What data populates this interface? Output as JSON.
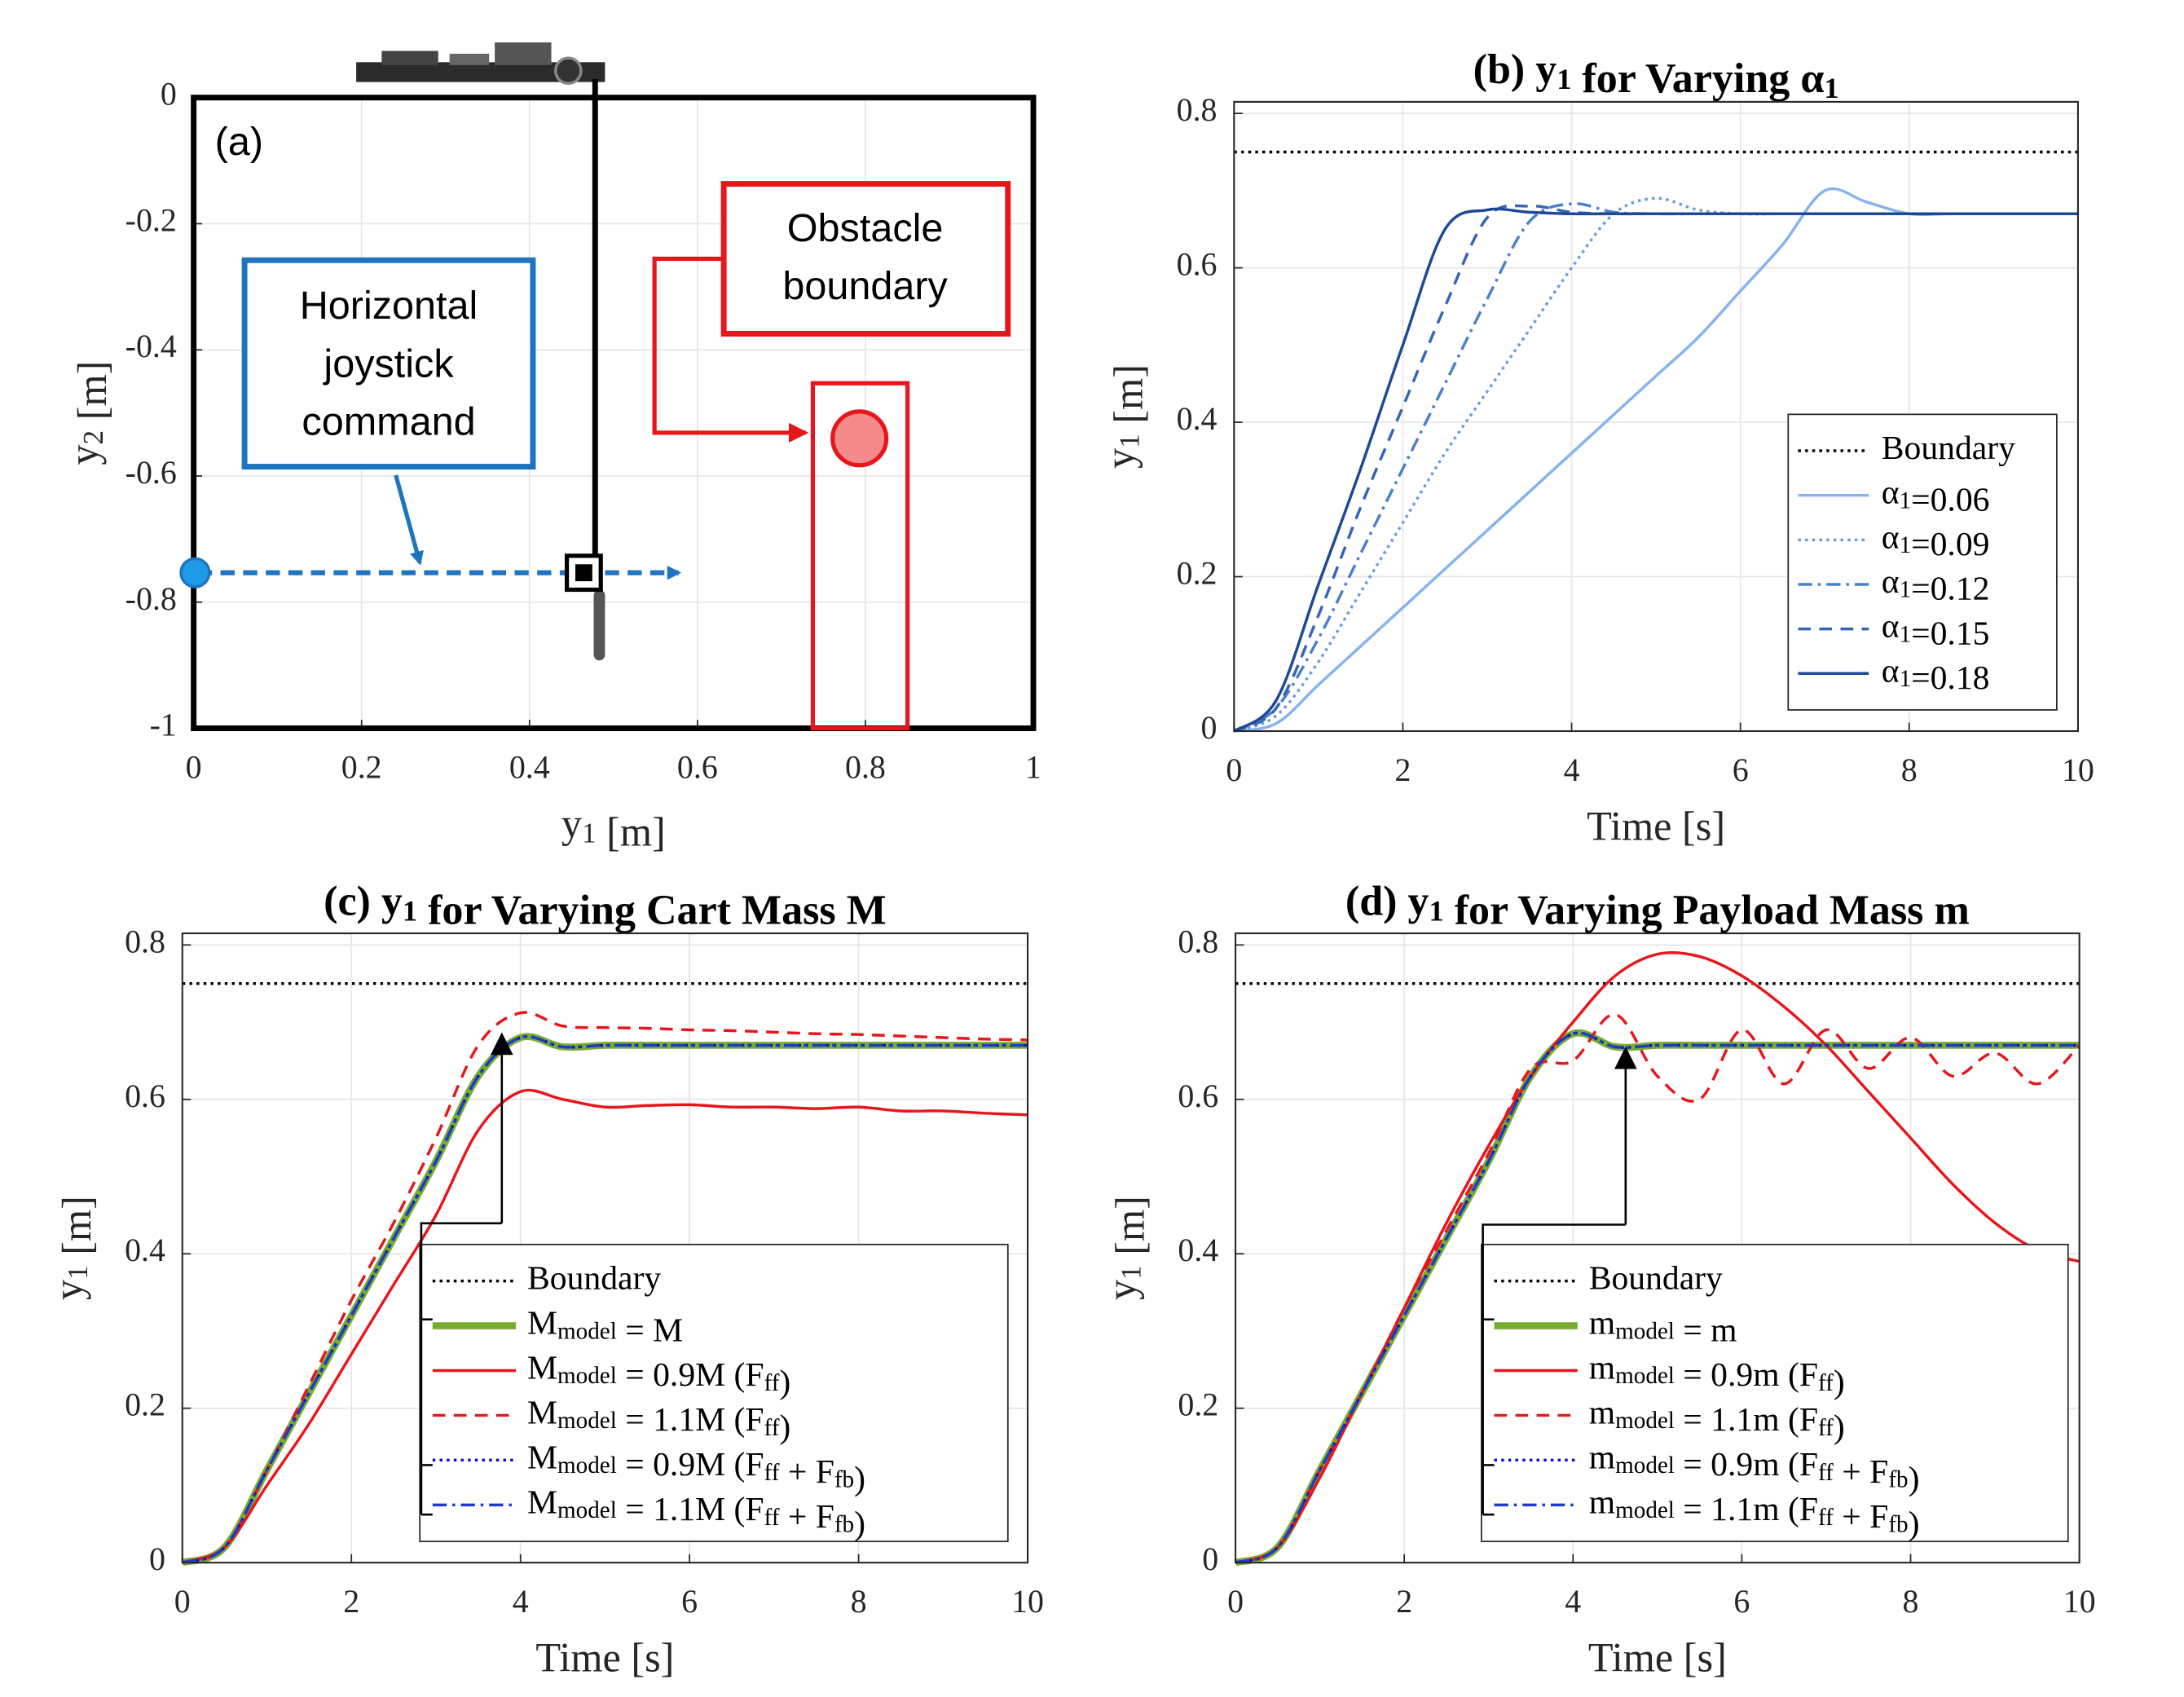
{
  "chart_data": [
    {
      "type": "diagram",
      "label": "(a)",
      "xlabel": "y_{1} [m]",
      "ylabel": "y_{2} [m]",
      "xlim": [
        0,
        1
      ],
      "ylim": [
        -1,
        0
      ],
      "xticks": [
        0,
        0.2,
        0.4,
        0.6,
        0.8,
        1
      ],
      "yticks": [
        0,
        -0.2,
        -0.4,
        -0.6,
        -0.8,
        -1
      ],
      "grid": true,
      "annotations": [
        [
          "Horizontal",
          "joystick",
          "command"
        ],
        [
          "Obstacle",
          "boundary"
        ]
      ]
    },
    {
      "type": "line",
      "title": "(b) y_{1} for Varying α_{1}",
      "xlabel": "Time [s]",
      "ylabel": "y_{1} [m]",
      "xlim": [
        0,
        10
      ],
      "ylim": [
        0,
        0.815
      ],
      "xticks": [
        0,
        2,
        4,
        6,
        8,
        10
      ],
      "yticks": [
        0,
        0.2,
        0.4,
        0.6,
        0.8
      ],
      "grid": true,
      "legend": "lower right",
      "hline": {
        "name": "Boundary",
        "value": 0.75,
        "color": "#000000",
        "dash": "dotted"
      },
      "x": [
        0,
        0.5,
        1,
        1.5,
        2,
        2.5,
        3,
        3.5,
        4,
        4.5,
        5,
        5.5,
        6,
        6.5,
        7,
        7.5,
        8,
        8.5,
        9,
        9.5,
        10
      ],
      "series": [
        {
          "name": "α_{1}=0.06",
          "color": "#86b3ef",
          "dash": "solid",
          "values": [
            0,
            0.01,
            0.06,
            0.11,
            0.16,
            0.21,
            0.26,
            0.31,
            0.36,
            0.41,
            0.46,
            0.51,
            0.57,
            0.63,
            0.7,
            0.685,
            0.67,
            0.67,
            0.67,
            0.67,
            0.67
          ]
        },
        {
          "name": "α_{1}=0.09",
          "color": "#6b9be0",
          "dash": "dotted",
          "values": [
            0,
            0.02,
            0.09,
            0.18,
            0.27,
            0.36,
            0.44,
            0.52,
            0.6,
            0.67,
            0.69,
            0.675,
            0.67,
            0.67,
            0.67,
            0.67,
            0.67,
            0.67,
            0.67,
            0.67,
            0.67
          ]
        },
        {
          "name": "α_{1}=0.12",
          "color": "#4c80cd",
          "dash": "dashdot",
          "values": [
            0,
            0.03,
            0.12,
            0.23,
            0.34,
            0.45,
            0.56,
            0.66,
            0.683,
            0.672,
            0.67,
            0.67,
            0.67,
            0.67,
            0.67,
            0.67,
            0.67,
            0.67,
            0.67,
            0.67,
            0.67
          ]
        },
        {
          "name": "α_{1}=0.15",
          "color": "#3566b5",
          "dash": "dashed",
          "values": [
            0,
            0.03,
            0.15,
            0.29,
            0.42,
            0.55,
            0.665,
            0.68,
            0.672,
            0.67,
            0.67,
            0.67,
            0.67,
            0.67,
            0.67,
            0.67,
            0.67,
            0.67,
            0.67,
            0.67,
            0.67
          ]
        },
        {
          "name": "α_{1}=0.18",
          "color": "#1e4997",
          "dash": "solid",
          "values": [
            0,
            0.04,
            0.19,
            0.34,
            0.5,
            0.65,
            0.675,
            0.672,
            0.67,
            0.67,
            0.67,
            0.67,
            0.67,
            0.67,
            0.67,
            0.67,
            0.67,
            0.67,
            0.67,
            0.67,
            0.67
          ]
        }
      ]
    },
    {
      "type": "line",
      "title": "(c) y_{1} for Varying Cart Mass M",
      "xlabel": "Time [s]",
      "ylabel": "y_{1} [m]",
      "xlim": [
        0,
        10
      ],
      "ylim": [
        0,
        0.815
      ],
      "xticks": [
        0,
        2,
        4,
        6,
        8,
        10
      ],
      "yticks": [
        0,
        0.2,
        0.4,
        0.6,
        0.8
      ],
      "grid": true,
      "legend": "lower center",
      "hline": {
        "name": "Boundary",
        "value": 0.75,
        "color": "#000000",
        "dash": "dotted"
      },
      "x": [
        0,
        0.5,
        1,
        1.5,
        2,
        2.5,
        3,
        3.5,
        4,
        4.5,
        5,
        5.5,
        6,
        6.5,
        7,
        7.5,
        8,
        8.5,
        9,
        9.5,
        10
      ],
      "series": [
        {
          "name": "M_{model} = M",
          "color": "#77ac30",
          "dash": "solid",
          "width": 5,
          "values": [
            0,
            0.02,
            0.12,
            0.22,
            0.32,
            0.42,
            0.52,
            0.63,
            0.68,
            0.668,
            0.67,
            0.67,
            0.67,
            0.67,
            0.67,
            0.67,
            0.67,
            0.67,
            0.67,
            0.67,
            0.67
          ]
        },
        {
          "name": "M_{model} = 0.9M (F_{ff})",
          "color": "#e8161b",
          "dash": "solid",
          "values": [
            0,
            0.02,
            0.1,
            0.18,
            0.27,
            0.36,
            0.45,
            0.56,
            0.61,
            0.6,
            0.59,
            0.592,
            0.593,
            0.59,
            0.59,
            0.588,
            0.59,
            0.585,
            0.585,
            0.582,
            0.58
          ]
        },
        {
          "name": "M_{model} = 1.1M (F_{ff})",
          "color": "#e8161b",
          "dash": "dashed",
          "values": [
            0,
            0.02,
            0.12,
            0.23,
            0.34,
            0.44,
            0.55,
            0.67,
            0.712,
            0.695,
            0.693,
            0.692,
            0.69,
            0.689,
            0.687,
            0.685,
            0.684,
            0.682,
            0.68,
            0.678,
            0.677
          ]
        },
        {
          "name": "M_{model} = 0.9M (F_{ff} + F_{fb})",
          "color": "#1010d0",
          "dash": "dotted",
          "values": [
            0,
            0.02,
            0.12,
            0.22,
            0.32,
            0.42,
            0.52,
            0.63,
            0.68,
            0.668,
            0.67,
            0.67,
            0.67,
            0.67,
            0.67,
            0.67,
            0.67,
            0.67,
            0.67,
            0.67,
            0.67
          ]
        },
        {
          "name": "M_{model} = 1.1M (F_{ff} + F_{fb})",
          "color": "#1c3cc8",
          "dash": "dashdot",
          "values": [
            0,
            0.02,
            0.12,
            0.22,
            0.32,
            0.42,
            0.52,
            0.63,
            0.68,
            0.668,
            0.67,
            0.67,
            0.67,
            0.67,
            0.67,
            0.67,
            0.67,
            0.67,
            0.67,
            0.67,
            0.67
          ]
        }
      ]
    },
    {
      "type": "line",
      "title": "(d) y_{1} for Varying Payload Mass m",
      "xlabel": "Time [s]",
      "ylabel": "y_{1} [m]",
      "xlim": [
        0,
        10
      ],
      "ylim": [
        0,
        0.815
      ],
      "xticks": [
        0,
        2,
        4,
        6,
        8,
        10
      ],
      "yticks": [
        0,
        0.2,
        0.4,
        0.6,
        0.8
      ],
      "grid": true,
      "legend": "lower center",
      "hline": {
        "name": "Boundary",
        "value": 0.75,
        "color": "#000000",
        "dash": "dotted"
      },
      "x": [
        0,
        0.5,
        1,
        1.5,
        2,
        2.5,
        3,
        3.5,
        4,
        4.5,
        5,
        5.5,
        6,
        6.5,
        7,
        7.5,
        8,
        8.5,
        9,
        9.5,
        10
      ],
      "series": [
        {
          "name": "m_{model} = m",
          "color": "#77ac30",
          "dash": "solid",
          "width": 5,
          "values": [
            0,
            0.02,
            0.12,
            0.22,
            0.32,
            0.42,
            0.52,
            0.63,
            0.685,
            0.668,
            0.67,
            0.67,
            0.67,
            0.67,
            0.67,
            0.67,
            0.67,
            0.67,
            0.67,
            0.67,
            0.67
          ]
        },
        {
          "name": "m_{model} = 0.9m (F_{ff})",
          "color": "#e8161b",
          "dash": "solid",
          "values": [
            0,
            0.02,
            0.11,
            0.22,
            0.33,
            0.44,
            0.54,
            0.63,
            0.7,
            0.76,
            0.788,
            0.785,
            0.76,
            0.72,
            0.67,
            0.61,
            0.55,
            0.49,
            0.44,
            0.405,
            0.39
          ]
        },
        {
          "name": "m_{model} = 1.1m (F_{ff})",
          "color": "#e8161b",
          "dash": "dashed",
          "values": [
            0,
            0.02,
            0.12,
            0.22,
            0.33,
            0.43,
            0.53,
            0.64,
            0.65,
            0.71,
            0.63,
            0.6,
            0.69,
            0.62,
            0.69,
            0.64,
            0.68,
            0.63,
            0.66,
            0.62,
            0.67
          ]
        },
        {
          "name": "m_{model} = 0.9m (F_{ff} + F_{fb})",
          "color": "#1010d0",
          "dash": "dotted",
          "values": [
            0,
            0.02,
            0.12,
            0.22,
            0.32,
            0.42,
            0.52,
            0.63,
            0.685,
            0.668,
            0.67,
            0.67,
            0.67,
            0.67,
            0.67,
            0.67,
            0.67,
            0.67,
            0.67,
            0.67,
            0.67
          ]
        },
        {
          "name": "m_{model} = 1.1m (F_{ff} + F_{fb})",
          "color": "#1c3cc8",
          "dash": "dashdot",
          "values": [
            0,
            0.02,
            0.12,
            0.22,
            0.32,
            0.42,
            0.52,
            0.63,
            0.685,
            0.668,
            0.67,
            0.67,
            0.67,
            0.67,
            0.67,
            0.67,
            0.67,
            0.67,
            0.67,
            0.67,
            0.67
          ]
        }
      ]
    }
  ]
}
